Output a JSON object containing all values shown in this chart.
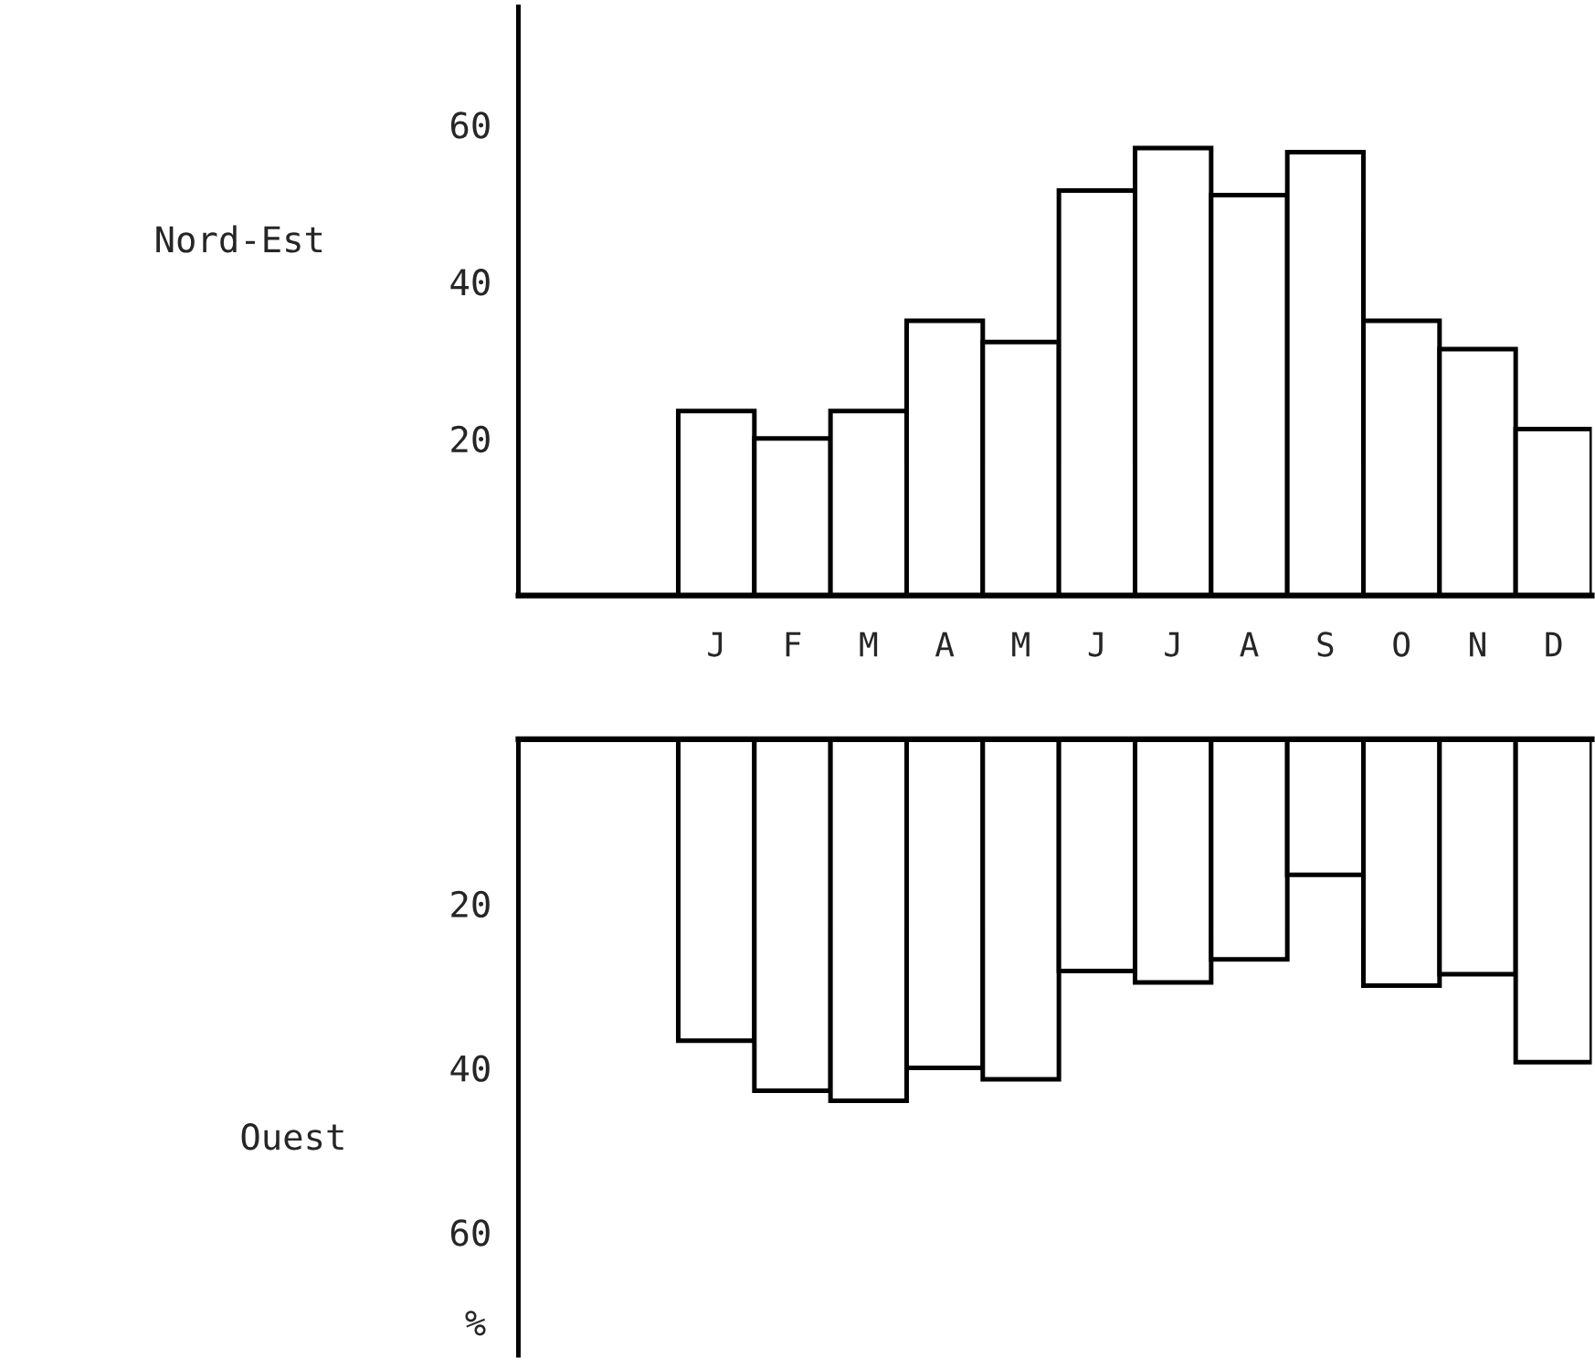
{
  "chart_data": [
    {
      "type": "bar",
      "ylabel": "Nord-Est",
      "categories": [
        "J",
        "F",
        "M",
        "A",
        "M",
        "J",
        "J",
        "A",
        "S",
        "O",
        "N",
        "D"
      ],
      "series": [
        {
          "color": "#ffffff",
          "values": [
            23.5,
            20,
            23.5,
            35,
            32.3,
            51.6,
            57,
            51,
            56.5,
            35,
            31.4,
            21.2
          ]
        }
      ],
      "ylim": [
        0,
        75
      ],
      "yticks": [
        20,
        40,
        60
      ],
      "grid": false,
      "legend": false
    },
    {
      "type": "bar",
      "ylabel": "Ouest",
      "annotations": [
        "%"
      ],
      "categories": [
        null,
        null,
        null,
        null,
        null,
        null,
        null,
        null,
        null,
        null,
        null,
        null
      ],
      "series": [
        {
          "color": "#ffffff",
          "values": [
            36.7,
            42.8,
            44,
            40,
            41.4,
            28.2,
            29.6,
            26.8,
            16.5,
            30,
            28.6,
            39.3
          ]
        }
      ],
      "ylim": [
        75,
        0
      ],
      "yticks": [
        20,
        40,
        60
      ],
      "tick_labels": "y",
      "grid": false,
      "legend": false
    }
  ]
}
